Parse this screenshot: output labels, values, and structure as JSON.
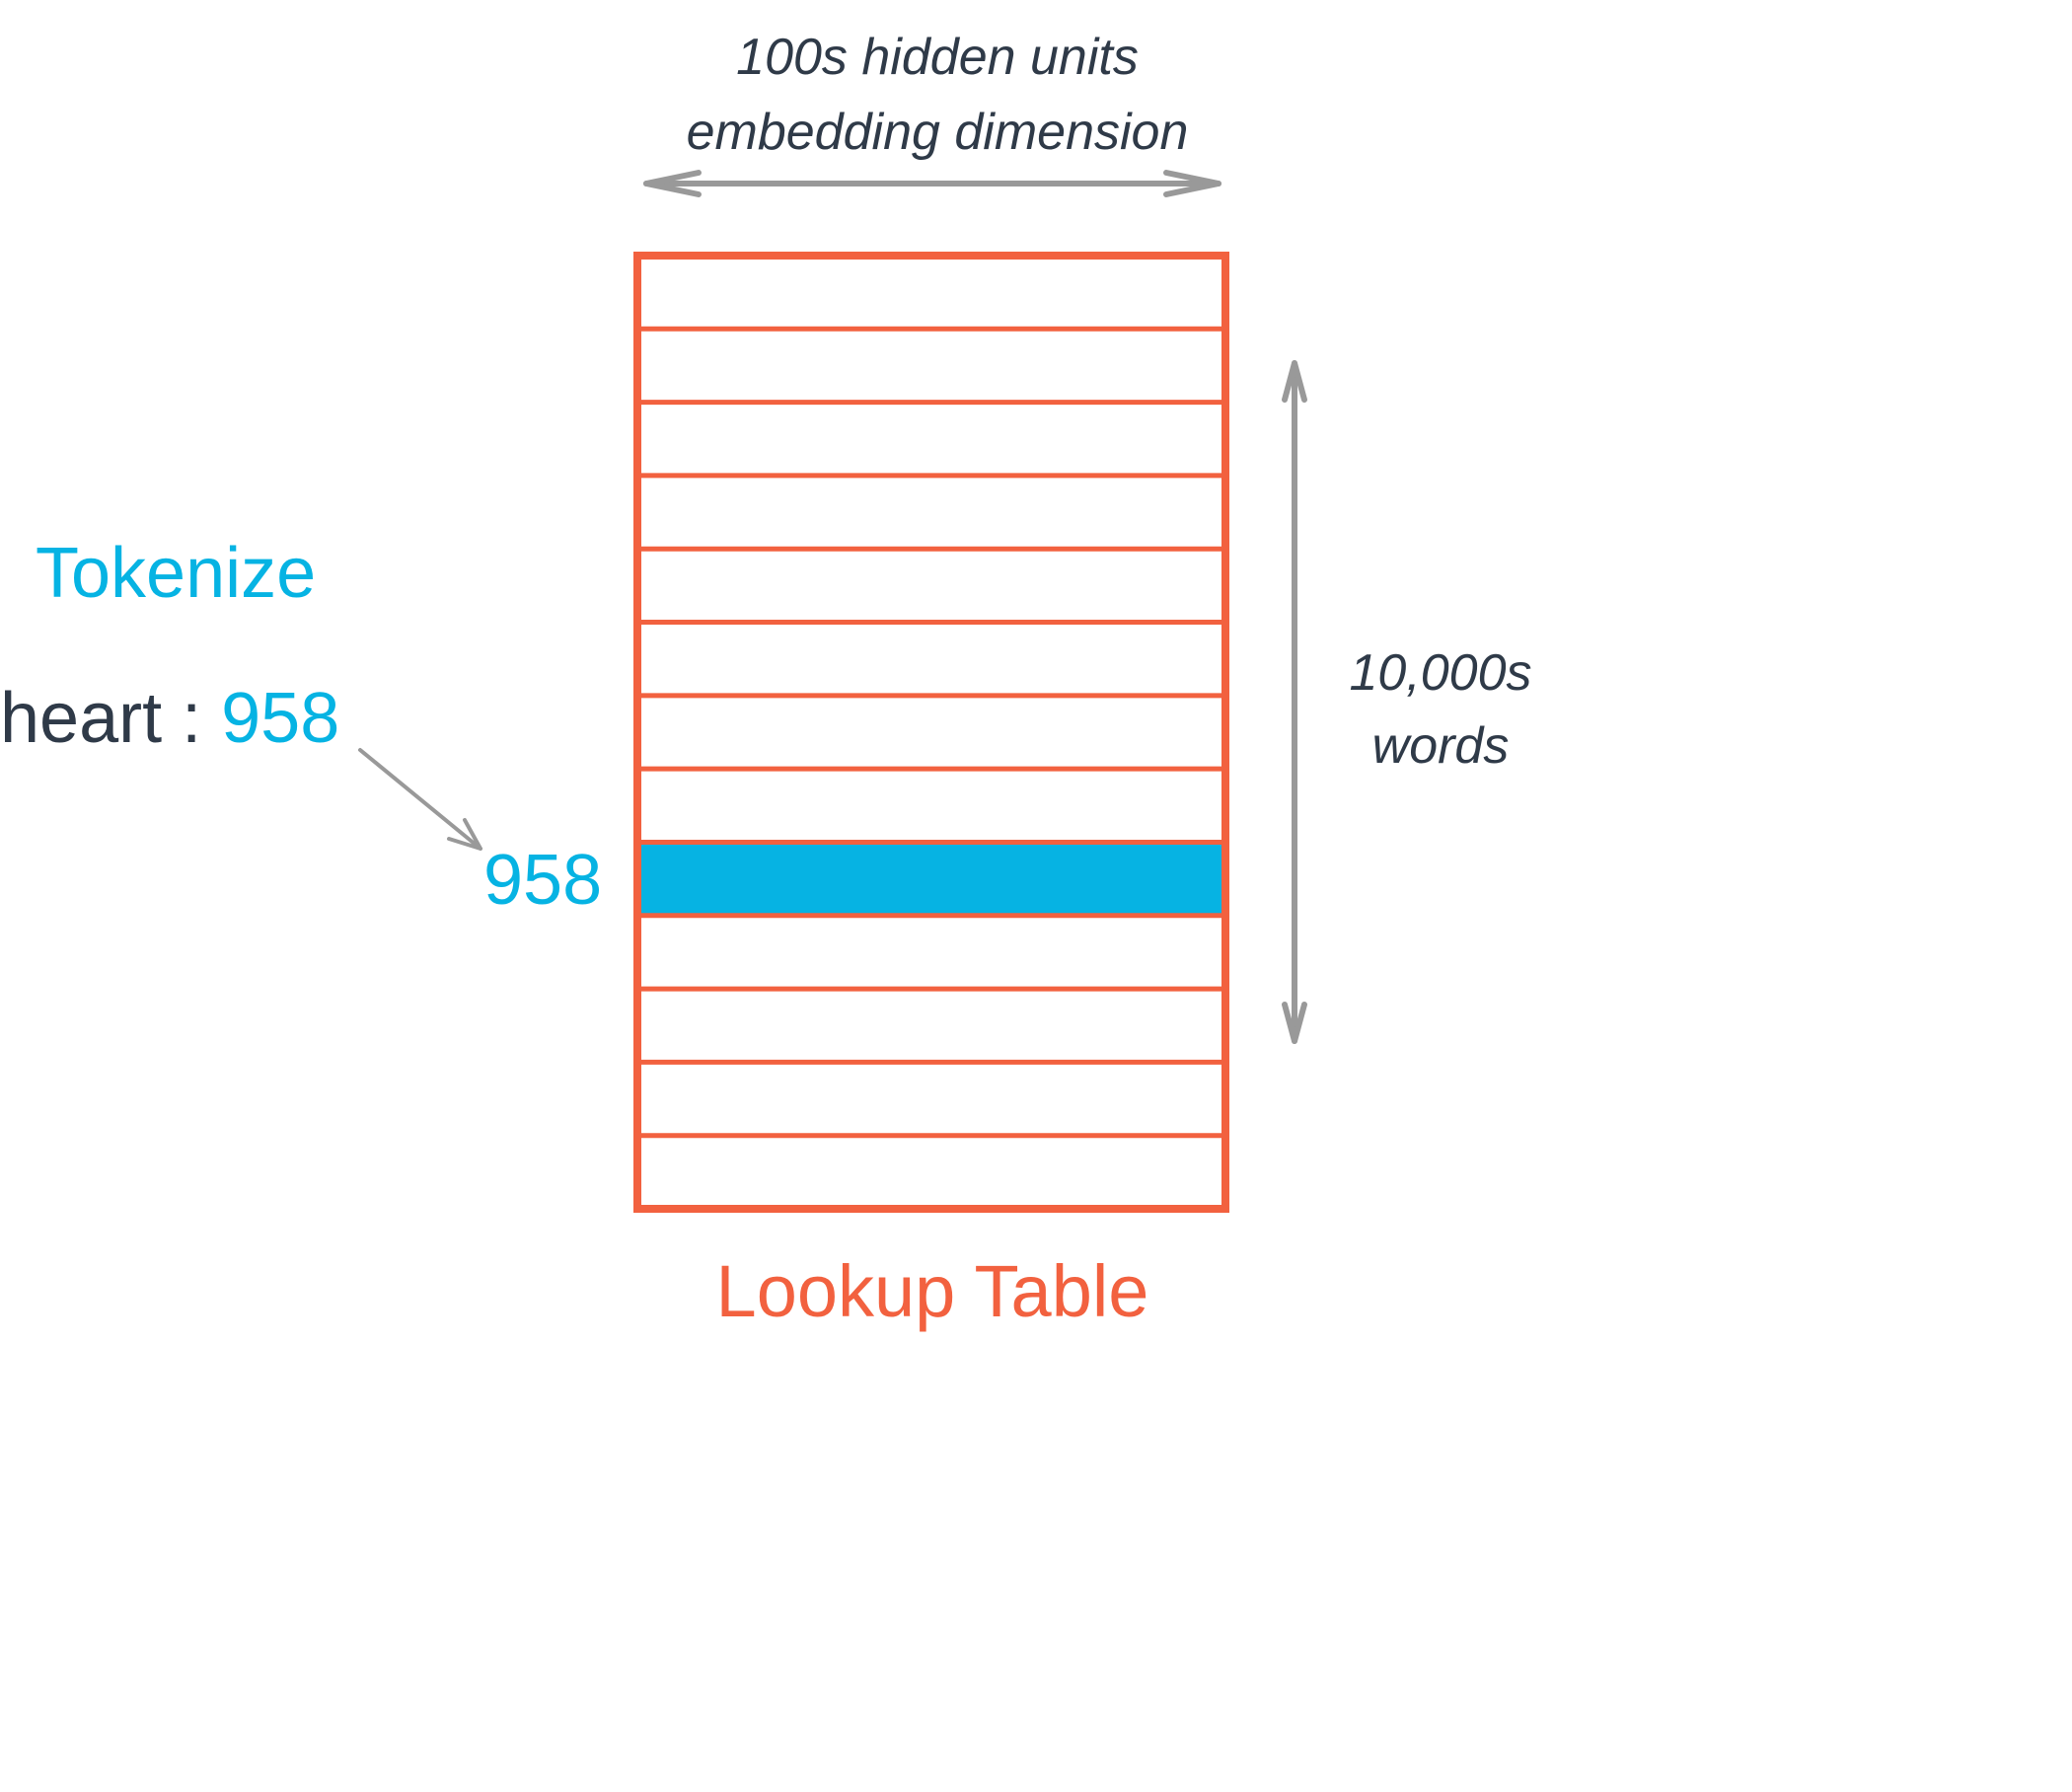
{
  "embedding_axis": {
    "line1": "100s hidden units",
    "line2": "embedding dimension"
  },
  "vocab_axis": {
    "line1": "10,000s",
    "line2": "words"
  },
  "tokenize": {
    "title": "Tokenize",
    "word": "heart",
    "separator": " : ",
    "token_id": "958"
  },
  "lookup": {
    "row_index_label": "958",
    "title": "Lookup Table",
    "row_count": 13,
    "highlighted_row": 9
  },
  "colors": {
    "table": "#f2613f",
    "highlight": "#06b3e3",
    "text_dark": "#2f3a48",
    "arrows": "#999999"
  }
}
